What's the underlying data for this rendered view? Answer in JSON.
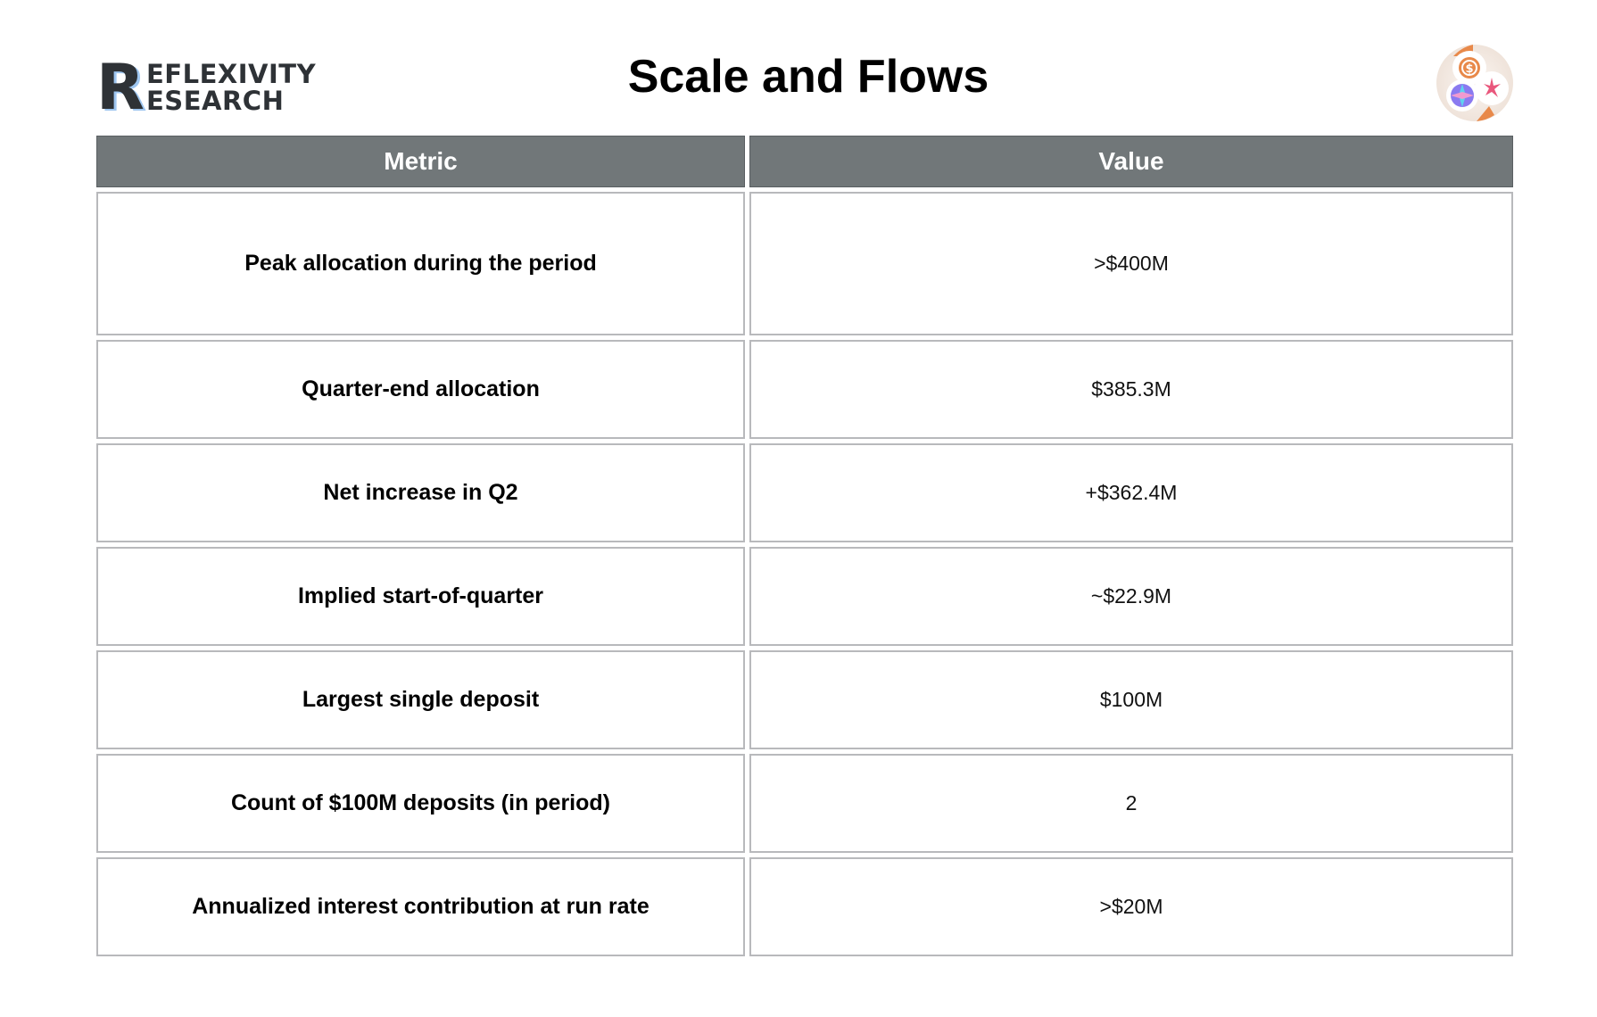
{
  "header": {
    "logo_text": "REFLEXIVITY RESEARCH",
    "logo_letter": "R",
    "logo_line1": "EFLEXIVITY",
    "logo_line2": "ESEARCH",
    "title": "Scale and Flows",
    "badge_icon": "stablecoin-tokens-icon"
  },
  "colors": {
    "header_bg": "#717779",
    "border": "#b8b9bc",
    "accent_orange": "#e8894a"
  },
  "table": {
    "columns": [
      "Metric",
      "Value"
    ],
    "rows": [
      {
        "metric": "Peak allocation during the period",
        "value": ">$400M"
      },
      {
        "metric": "Quarter-end allocation",
        "value": "$385.3M"
      },
      {
        "metric": "Net increase in Q2",
        "value": "+$362.4M"
      },
      {
        "metric": "Implied start-of-quarter",
        "value": "~$22.9M"
      },
      {
        "metric": "Largest single deposit",
        "value": "$100M"
      },
      {
        "metric": "Count of $100M deposits (in period)",
        "value": "2"
      },
      {
        "metric": "Annualized interest contribution at run rate",
        "value": ">$20M"
      }
    ]
  }
}
